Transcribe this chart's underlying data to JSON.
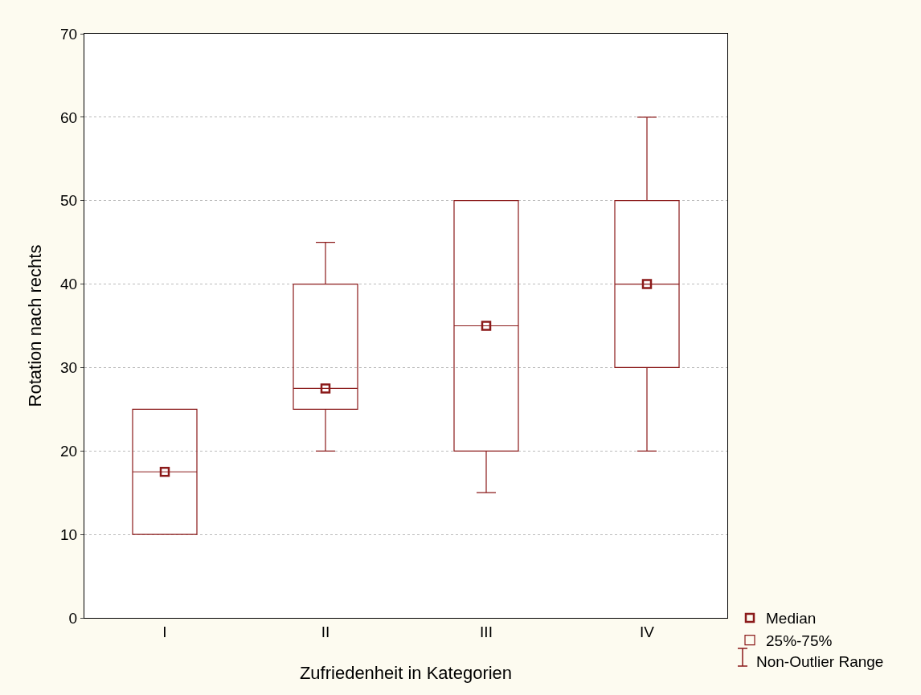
{
  "chart_data": {
    "type": "box",
    "xlabel": "Zufriedenheit in Kategorien",
    "ylabel": "Rotation nach rechts",
    "categories": [
      "I",
      "II",
      "III",
      "IV"
    ],
    "ylim": [
      0,
      70
    ],
    "yticks": [
      0,
      10,
      20,
      30,
      40,
      50,
      60,
      70
    ],
    "grid": "y",
    "legend": "bottom right",
    "annotations": [
      "Non-Outlier Range"
    ],
    "series": [
      {
        "name": "Median",
        "type": "scatter",
        "marker": "square",
        "color": "#8b1a1a",
        "values": [
          17.5,
          27.5,
          35,
          40
        ]
      },
      {
        "name": "25%-75%",
        "type": "box",
        "color": "#8b1a1a",
        "boxes": [
          {
            "low": 10,
            "q1": 10,
            "median": 17.5,
            "q3": 25,
            "high": 25
          },
          {
            "low": 20,
            "q1": 25,
            "median": 27.5,
            "q3": 40,
            "high": 45
          },
          {
            "low": 15,
            "q1": 20,
            "median": 35,
            "q3": 50,
            "high": 50
          },
          {
            "low": 20,
            "q1": 30,
            "median": 40,
            "q3": 50,
            "high": 60
          }
        ]
      }
    ]
  }
}
